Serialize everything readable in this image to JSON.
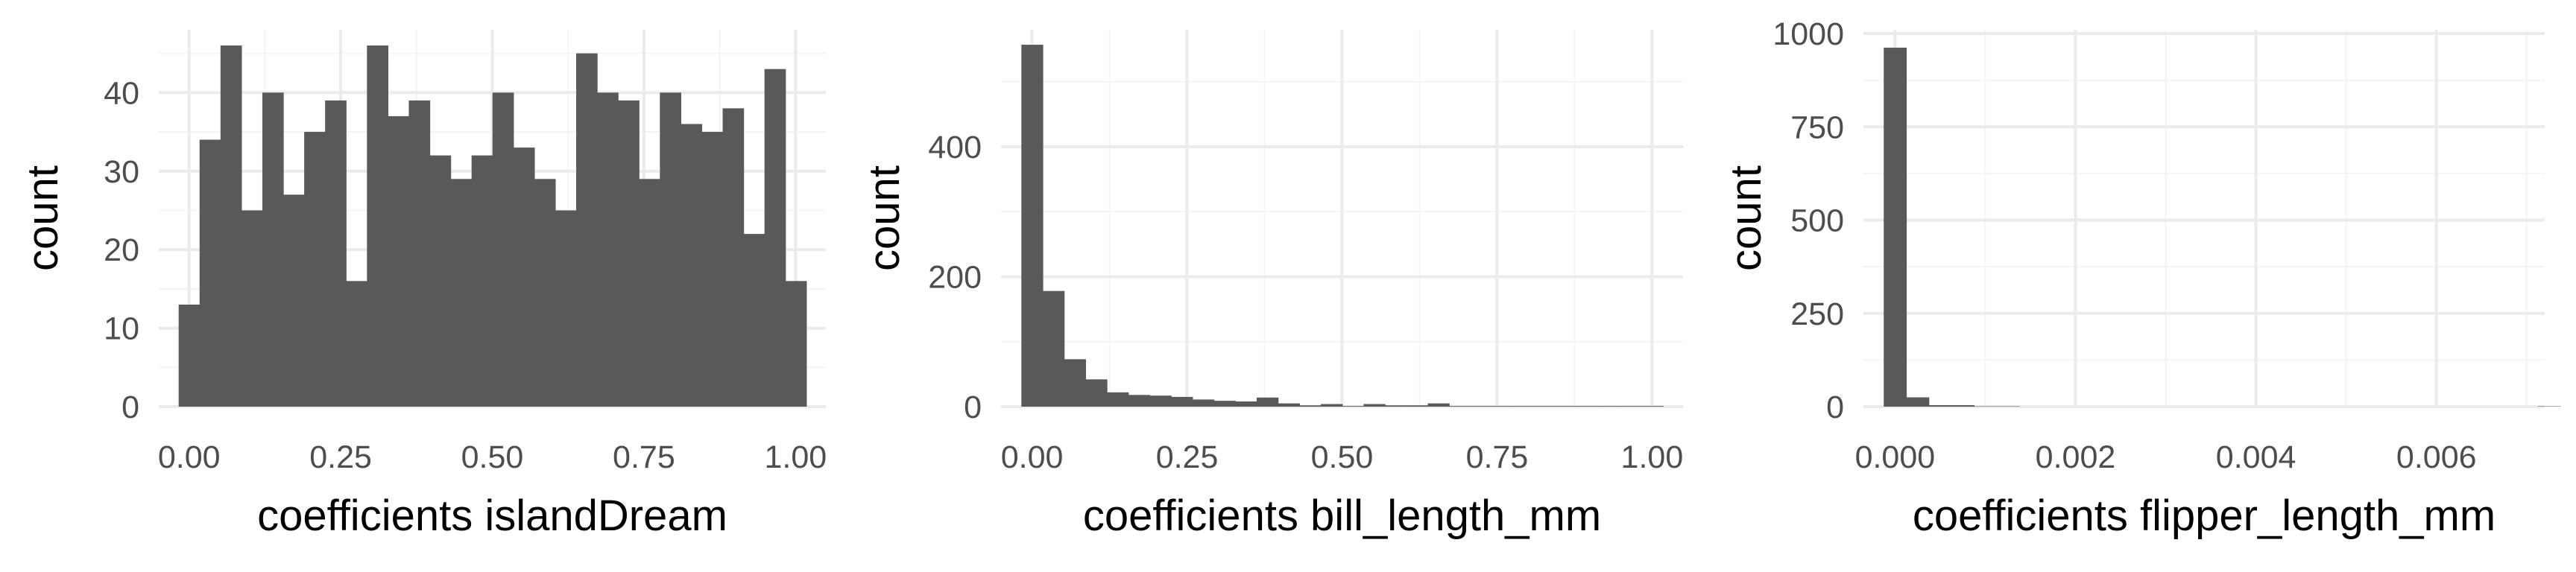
{
  "colors": {
    "bar": "#595959",
    "grid_major": "#ebebeb",
    "grid_minor": "#f4f4f4",
    "tick_text": "#4d4d4d",
    "title_text": "#000000"
  },
  "chart_data": [
    {
      "type": "bar",
      "title": "",
      "xlabel": "coefficients islandDream",
      "ylabel": "count",
      "xlim": [
        -0.05,
        1.05
      ],
      "ylim": [
        0,
        48
      ],
      "xticks": [
        "0.00",
        "0.25",
        "0.50",
        "0.75",
        "1.00"
      ],
      "yticks": [
        "0",
        "10",
        "20",
        "30",
        "40"
      ],
      "grid": true,
      "bin_start": -0.0172,
      "bin_width": 0.0345,
      "values": [
        13,
        34,
        46,
        25,
        40,
        27,
        35,
        39,
        16,
        46,
        37,
        39,
        32,
        29,
        32,
        40,
        33,
        29,
        25,
        45,
        40,
        39,
        29,
        40,
        36,
        35,
        38,
        22,
        43,
        16
      ]
    },
    {
      "type": "bar",
      "title": "",
      "xlabel": "coefficients bill_length_mm",
      "ylabel": "count",
      "xlim": [
        -0.05,
        1.05
      ],
      "ylim": [
        0,
        580
      ],
      "xticks": [
        "0.00",
        "0.25",
        "0.50",
        "0.75",
        "1.00"
      ],
      "yticks": [
        "0",
        "200",
        "400"
      ],
      "grid": true,
      "bin_start": -0.0172,
      "bin_width": 0.0345,
      "values": [
        557,
        178,
        73,
        42,
        22,
        18,
        17,
        15,
        11,
        9,
        8,
        14,
        5,
        2,
        4,
        1,
        4,
        2,
        2,
        5,
        1,
        1,
        1,
        1,
        1,
        1,
        1,
        1,
        1,
        1
      ]
    },
    {
      "type": "bar",
      "title": "",
      "xlabel": "coefficients flipper_length_mm",
      "ylabel": "count",
      "xlim": [
        -0.00035,
        0.0072
      ],
      "ylim": [
        0,
        1010
      ],
      "xticks": [
        "0.000",
        "0.002",
        "0.004",
        "0.006"
      ],
      "yticks": [
        "0",
        "250",
        "500",
        "750",
        "1000"
      ],
      "grid": true,
      "bin_start": -0.000125,
      "bin_width": 0.00025,
      "values": [
        962,
        25,
        4,
        4,
        1,
        1,
        0,
        0,
        0,
        0,
        0,
        0,
        0,
        0,
        0,
        0,
        0,
        0,
        0,
        0,
        0,
        0,
        0,
        0,
        0,
        0,
        0,
        0,
        0,
        1
      ]
    }
  ]
}
